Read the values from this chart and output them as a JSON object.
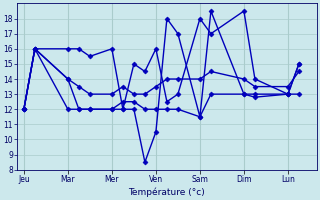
{
  "background_color": "#cce8ec",
  "grid_color": "#aacccc",
  "line_color": "#0000bb",
  "marker": "D",
  "markersize": 2.5,
  "linewidth": 1.0,
  "xlabel": "Température (°c)",
  "ylim": [
    8,
    19
  ],
  "yticks": [
    8,
    9,
    10,
    11,
    12,
    13,
    14,
    15,
    16,
    17,
    18
  ],
  "day_labels": [
    "Jeu",
    "Mar",
    "Mer",
    "Ven",
    "Sam",
    "Dim",
    "Lun"
  ],
  "day_x": [
    0,
    2,
    4,
    6,
    8,
    10,
    12
  ],
  "xlim": [
    -0.3,
    13.3
  ],
  "lines": [
    {
      "x": [
        0,
        0.5,
        2,
        2.5,
        3,
        4,
        4.5,
        5,
        5.5,
        6,
        6.5,
        7,
        8,
        8.5,
        10,
        10.5,
        12,
        12.5
      ],
      "y": [
        12,
        16,
        16,
        16,
        15.5,
        16,
        12,
        15,
        14.5,
        16,
        12.5,
        13,
        18,
        17,
        18.5,
        14,
        13,
        15
      ]
    },
    {
      "x": [
        0,
        0.5,
        2,
        2.5,
        3,
        4,
        4.5,
        5,
        5.5,
        6,
        6.5,
        7,
        8,
        8.5,
        10,
        10.5,
        12,
        12.5
      ],
      "y": [
        12,
        16,
        14,
        12,
        12,
        12,
        12,
        12,
        8.5,
        10.5,
        18,
        17,
        11.5,
        18.5,
        13,
        12.8,
        13,
        15
      ]
    },
    {
      "x": [
        0,
        0.5,
        2,
        2.5,
        3,
        4,
        4.5,
        5,
        5.5,
        6,
        6.5,
        7,
        8,
        8.5,
        10,
        10.5,
        12,
        12.5
      ],
      "y": [
        12,
        16,
        14,
        13.5,
        13,
        13,
        13.5,
        13,
        13,
        13.5,
        14,
        14,
        14,
        14.5,
        14,
        13.5,
        13.5,
        14.5
      ]
    },
    {
      "x": [
        0,
        0.5,
        2,
        2.5,
        3,
        4,
        4.5,
        5,
        5.5,
        6,
        6.5,
        7,
        8,
        8.5,
        10,
        10.5,
        12,
        12.5
      ],
      "y": [
        12,
        16,
        12,
        12,
        12,
        12,
        12.5,
        12.5,
        12,
        12,
        12,
        12,
        11.5,
        13,
        13,
        13,
        13,
        13
      ]
    }
  ]
}
